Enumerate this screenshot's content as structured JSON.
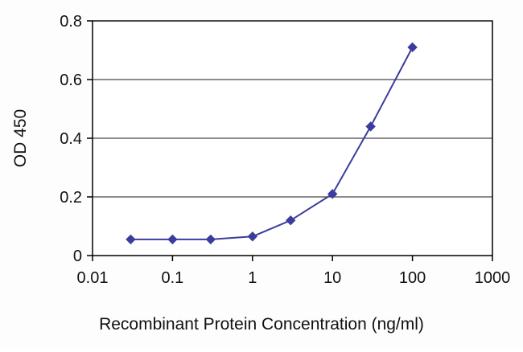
{
  "chart_data": {
    "type": "line",
    "title": "",
    "xlabel": "Recombinant Protein Concentration (ng/ml)",
    "ylabel": "OD 450",
    "x_scale": "log10",
    "xlim": [
      0.01,
      1000
    ],
    "ylim": [
      0,
      0.8
    ],
    "x_ticks": [
      0.01,
      0.1,
      1,
      10,
      100,
      1000
    ],
    "x_tick_labels": [
      "0.01",
      "0.1",
      "1",
      "10",
      "100",
      "1000"
    ],
    "y_ticks": [
      0,
      0.2,
      0.4,
      0.6,
      0.8
    ],
    "y_tick_labels": [
      "0",
      "0.2",
      "0.4",
      "0.6",
      "0.8"
    ],
    "grid": "horizontal-only",
    "legend": "none",
    "series": [
      {
        "name": "OD 450",
        "marker": "diamond",
        "color": "#3c3c9e",
        "x": [
          0.03,
          0.1,
          0.3,
          1,
          3,
          10,
          30,
          100
        ],
        "y": [
          0.055,
          0.055,
          0.055,
          0.065,
          0.12,
          0.21,
          0.44,
          0.71
        ]
      }
    ],
    "plot_background": "#ffffff",
    "gridline_color": "#1a1a1a",
    "axis_color": "#000000"
  }
}
